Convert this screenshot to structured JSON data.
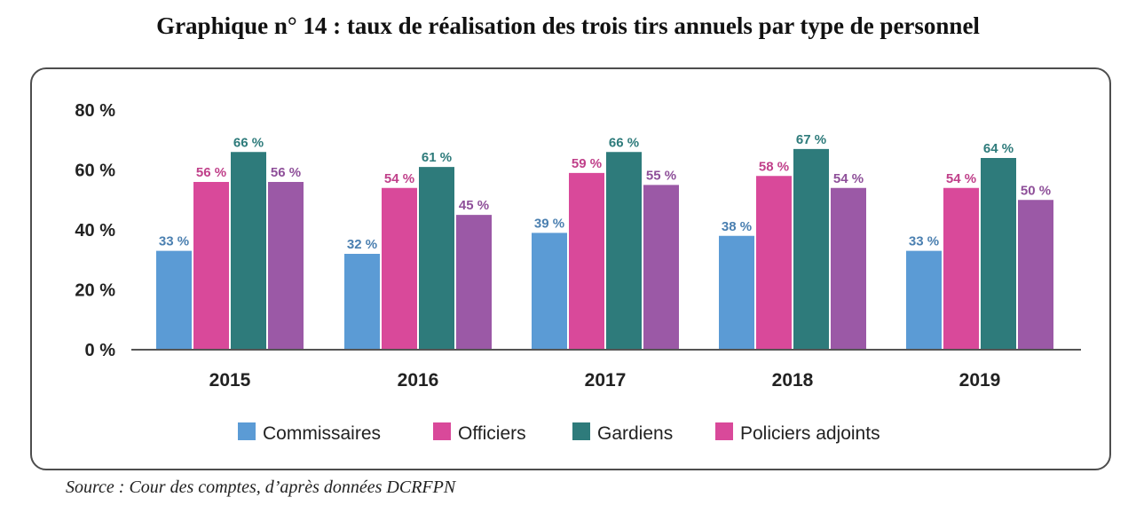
{
  "title": "Graphique n° 14 : taux de réalisation des trois tirs annuels par type de personnel",
  "source": "Source : Cour des comptes, d’après données DCRFPN",
  "chart_data": {
    "type": "bar",
    "categories": [
      "2015",
      "2016",
      "2017",
      "2018",
      "2019"
    ],
    "ylim": [
      0,
      80
    ],
    "yticks": [
      0,
      20,
      40,
      60,
      80
    ],
    "ytick_labels": [
      "0 %",
      "20 %",
      "40 %",
      "60 %",
      "80 %"
    ],
    "series": [
      {
        "name": "Commissaires",
        "color": "#5b9bd5",
        "label_color": "#4a7fb0",
        "values": [
          33,
          32,
          39,
          38,
          33
        ],
        "labels": [
          "33 %",
          "32 %",
          "39 %",
          "38 %",
          "33 %"
        ]
      },
      {
        "name": "Officiers",
        "color": "#d9499a",
        "label_color": "#c0408a",
        "values": [
          56,
          54,
          59,
          58,
          54
        ],
        "labels": [
          "56 %",
          "54 %",
          "59 %",
          "58 %",
          "54 %"
        ]
      },
      {
        "name": "Gardiens",
        "color": "#2e7b7b",
        "label_color": "#2e7b7b",
        "values": [
          66,
          61,
          66,
          67,
          64
        ],
        "labels": [
          "66 %",
          "61 %",
          "66 %",
          "67 %",
          "64 %"
        ]
      },
      {
        "name": "Policiers adjoints",
        "color": "#9b59a6",
        "label_color": "#8e4f99",
        "values": [
          56,
          45,
          55,
          54,
          50
        ],
        "labels": [
          "56 %",
          "45 %",
          "55 %",
          "54 %",
          "50 %"
        ]
      }
    ],
    "legend_position": "bottom",
    "legend_colors": [
      "#5b9bd5",
      "#d9499a",
      "#2e7b7b",
      "#d9499a"
    ]
  }
}
